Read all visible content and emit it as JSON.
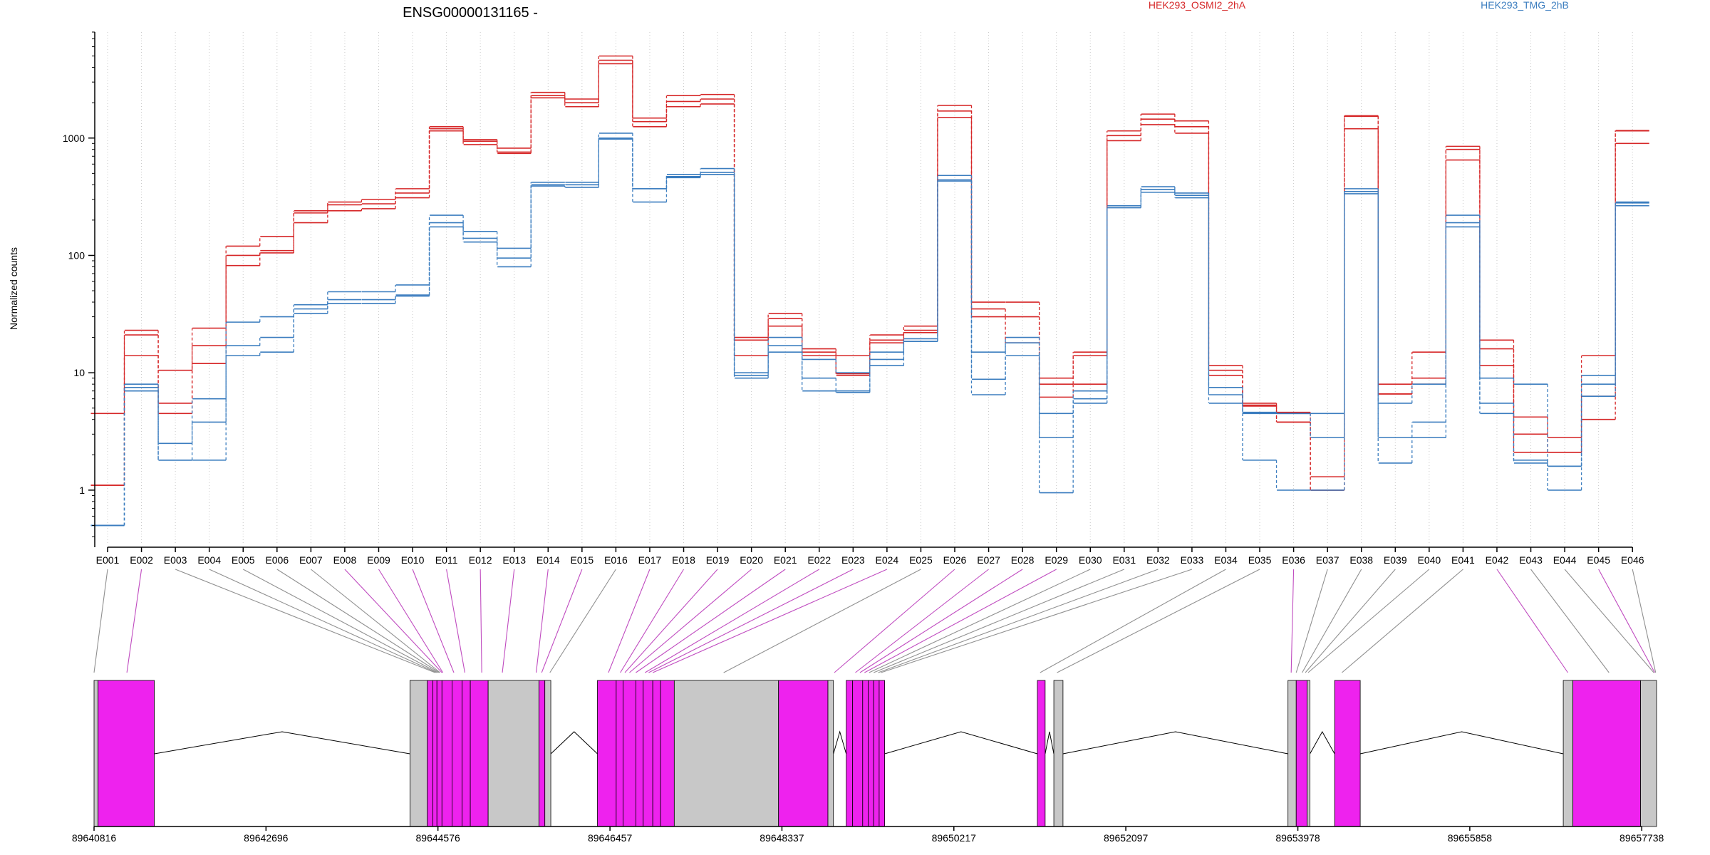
{
  "title": "ENSG00000131165 -",
  "chart_data": {
    "type": "line",
    "yscale": "log",
    "ylabel": "Normalized counts",
    "ylim": [
      0.35,
      8000
    ],
    "yticks": [
      1,
      10,
      100,
      1000
    ],
    "yticklabels": [
      "1",
      "10",
      "100",
      "1000"
    ],
    "grid": "vertical dotted lines at each exon",
    "legend_placement": "top, inline",
    "exons": [
      "E001",
      "E002",
      "E003",
      "E004",
      "E005",
      "E006",
      "E007",
      "E008",
      "E009",
      "E010",
      "E011",
      "E012",
      "E013",
      "E014",
      "E015",
      "E016",
      "E017",
      "E018",
      "E019",
      "E020",
      "E021",
      "E022",
      "E023",
      "E024",
      "E025",
      "E026",
      "E027",
      "E028",
      "E029",
      "E030",
      "E031",
      "E032",
      "E033",
      "E034",
      "E035",
      "E036",
      "E037",
      "E038",
      "E039",
      "E040",
      "E041",
      "E042",
      "E043",
      "E044",
      "E045",
      "E046"
    ],
    "groups": [
      {
        "name": "HEK293_OSMI2_2hA",
        "color": "#d62728"
      },
      {
        "name": "HEK293_TMG_2hB",
        "color": "#3b7dbf"
      }
    ],
    "series": [
      {
        "group": 0,
        "values": [
          4.5,
          23,
          10.5,
          24,
          120,
          145,
          240,
          285,
          300,
          370,
          1250,
          970,
          820,
          2450,
          2150,
          5000,
          1480,
          2300,
          2350,
          20,
          32,
          16,
          14,
          21,
          25,
          1900,
          40,
          40,
          9,
          15,
          1150,
          1600,
          1400,
          11.5,
          5.5,
          4.6,
          1.3,
          1550,
          8,
          15,
          850,
          19,
          4.2,
          2.8,
          14,
          1160
        ]
      },
      {
        "group": 0,
        "values": [
          1.1,
          21,
          5.5,
          17,
          100,
          110,
          230,
          270,
          275,
          340,
          1200,
          940,
          760,
          2300,
          2000,
          4600,
          1380,
          2050,
          2150,
          19,
          29,
          15,
          9.8,
          19,
          23,
          1700,
          35,
          30,
          8,
          14,
          1050,
          1450,
          1250,
          10.5,
          5.3,
          3.8,
          1,
          1530,
          6.6,
          9,
          800,
          16,
          3,
          2.1,
          6.3,
          1150
        ]
      },
      {
        "group": 0,
        "values": [
          1.1,
          14,
          4.5,
          12,
          82,
          105,
          190,
          240,
          250,
          310,
          1150,
          880,
          740,
          2200,
          1850,
          4300,
          1250,
          1850,
          1950,
          14,
          25,
          14,
          9.5,
          18,
          22,
          1500,
          30,
          18,
          6.2,
          8,
          950,
          1300,
          1100,
          9.5,
          5.2,
          3.8,
          1,
          1200,
          6.6,
          8,
          650,
          11.5,
          2.1,
          2.1,
          4,
          900
        ]
      },
      {
        "group": 1,
        "values": [
          0.5,
          8,
          2.5,
          6,
          27,
          30,
          38,
          49,
          49,
          56,
          220,
          160,
          115,
          420,
          420,
          1100,
          370,
          490,
          550,
          10,
          20,
          13,
          10,
          15,
          19.5,
          480,
          15,
          20,
          4.5,
          7,
          265,
          385,
          340,
          7.5,
          4.6,
          4.5,
          4.5,
          370,
          5.5,
          8,
          220,
          9,
          8,
          1.6,
          9.5,
          285
        ]
      },
      {
        "group": 1,
        "values": [
          0.5,
          7.5,
          1.8,
          3.8,
          17,
          20,
          35,
          42,
          42,
          46,
          190,
          140,
          95,
          400,
          400,
          1000,
          370,
          470,
          510,
          9.5,
          17,
          9,
          7,
          13,
          18.5,
          440,
          8.8,
          18,
          2.8,
          6,
          255,
          365,
          325,
          6.5,
          4.5,
          4.5,
          2.8,
          350,
          2.8,
          3.8,
          190,
          5.5,
          1.8,
          1.6,
          8,
          280
        ]
      },
      {
        "group": 1,
        "values": [
          0.5,
          7,
          1.8,
          1.8,
          14,
          15,
          32,
          39,
          39,
          45,
          175,
          130,
          80,
          390,
          380,
          980,
          285,
          460,
          490,
          9,
          15,
          7,
          6.8,
          11.5,
          18.5,
          430,
          6.5,
          14,
          0.95,
          5.5,
          255,
          345,
          310,
          5.5,
          1.8,
          1,
          1,
          335,
          1.7,
          2.8,
          175,
          4.5,
          1.7,
          1,
          6.3,
          265
        ]
      }
    ],
    "gene_model": {
      "xlim": [
        89640816,
        89657900
      ],
      "xticks": [
        89640816,
        89642696,
        89644576,
        89646457,
        89648337,
        89650217,
        89652097,
        89653978,
        89655858,
        89657738
      ],
      "xticklabels": [
        "89640816",
        "89642696",
        "89644576",
        "89646457",
        "89648337",
        "89650217",
        "89652097",
        "89653978",
        "89655858",
        "89657738"
      ],
      "colors": {
        "exon_magenta": "#ee22ee",
        "exon_gray": "#c8c8c8",
        "link_gray": "#909090",
        "link_magenta": "#c04cc0"
      },
      "exon_coords": [
        [
          89640816,
          89640860,
          "g"
        ],
        [
          89640860,
          89641475,
          "m"
        ],
        [
          89644270,
          89644460,
          "g"
        ],
        [
          89644460,
          89644520,
          "m"
        ],
        [
          89644520,
          89644565,
          "m"
        ],
        [
          89644565,
          89644620,
          "m"
        ],
        [
          89644620,
          89644730,
          "m"
        ],
        [
          89644730,
          89644840,
          "m"
        ],
        [
          89644840,
          89644930,
          "m"
        ],
        [
          89644930,
          89645125,
          "m"
        ],
        [
          89645125,
          89645680,
          "g"
        ],
        [
          89645680,
          89645745,
          "m"
        ],
        [
          89645745,
          89645810,
          "g"
        ],
        [
          89646320,
          89646525,
          "m"
        ],
        [
          89646525,
          89646600,
          "m"
        ],
        [
          89646600,
          89646740,
          "m"
        ],
        [
          89646740,
          89646820,
          "m"
        ],
        [
          89646820,
          89646925,
          "m"
        ],
        [
          89646925,
          89647010,
          "m"
        ],
        [
          89647010,
          89647160,
          "m"
        ],
        [
          89647160,
          89648300,
          "g"
        ],
        [
          89648300,
          89648840,
          "m"
        ],
        [
          89648840,
          89648900,
          "g"
        ],
        [
          89649040,
          89649110,
          "m"
        ],
        [
          89649110,
          89649220,
          "m"
        ],
        [
          89649220,
          89649280,
          "m"
        ],
        [
          89649280,
          89649340,
          "m"
        ],
        [
          89649340,
          89649400,
          "m"
        ],
        [
          89649400,
          89649460,
          "m"
        ],
        [
          89651130,
          89651215,
          "m"
        ],
        [
          89651310,
          89651410,
          "g"
        ],
        [
          89653870,
          89653960,
          "g"
        ],
        [
          89653960,
          89654080,
          "m"
        ],
        [
          89654080,
          89654110,
          "g"
        ],
        [
          89654380,
          89654660,
          "m"
        ],
        [
          89656880,
          89656985,
          "g"
        ],
        [
          89656985,
          89657725,
          "m"
        ],
        [
          89657725,
          89657900,
          "g"
        ]
      ],
      "exon_link_colors": [
        "g",
        "m",
        "g",
        "g",
        "g",
        "g",
        "g",
        "m",
        "m",
        "m",
        "m",
        "m",
        "m",
        "m",
        "m",
        "g",
        "m",
        "m",
        "m",
        "m",
        "m",
        "m",
        "m",
        "m",
        "g",
        "m",
        "m",
        "m",
        "m",
        "g",
        "g",
        "g",
        "g",
        "g",
        "g",
        "m",
        "g",
        "g",
        "g",
        "g",
        "g",
        "m",
        "g",
        "g",
        "m",
        "g"
      ],
      "exon_link_targets": [
        89640816,
        89641175,
        89644545,
        89644560,
        89644575,
        89644590,
        89644600,
        89644620,
        89644630,
        89644750,
        89644870,
        89645055,
        89645280,
        89645650,
        89645710,
        89645800,
        89646440,
        89646570,
        89646620,
        89646670,
        89646740,
        89646840,
        89646880,
        89646925,
        89647700,
        89648910,
        89649140,
        89649190,
        89649240,
        89649290,
        89649340,
        89649390,
        89649420,
        89651160,
        89651345,
        89653905,
        89653960,
        89654025,
        89654060,
        89654090,
        89654460,
        89656930,
        89657380,
        89657870,
        89657880,
        89657890
      ]
    }
  }
}
